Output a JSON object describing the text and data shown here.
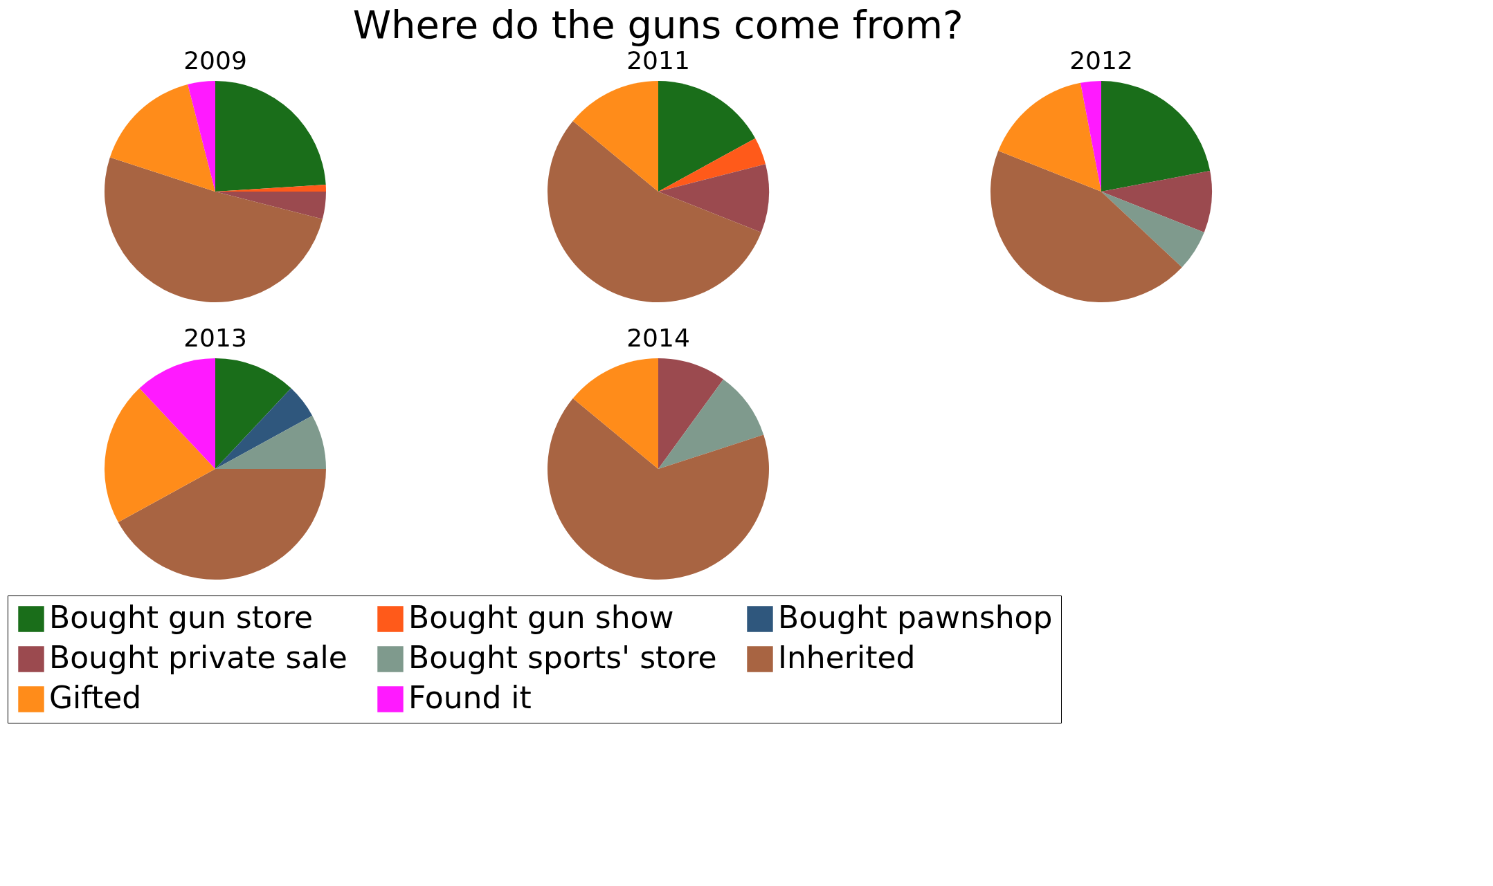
{
  "chart_data": {
    "type": "pie",
    "title": "Where do the guns come from?",
    "categories": [
      "Bought gun store",
      "Bought gun show",
      "Bought pawnshop",
      "Bought private sale",
      "Bought sports' store",
      "Inherited",
      "Gifted",
      "Found it"
    ],
    "colors": [
      "#1a6e1a",
      "#ff5a1a",
      "#2f577d",
      "#9b4a4f",
      "#7f9a8d",
      "#a86442",
      "#ff8c1a",
      "#ff1aff"
    ],
    "legend": "bottom",
    "series": [
      {
        "name": "2009",
        "values": [
          24,
          1,
          0,
          4,
          0,
          51,
          16,
          4
        ]
      },
      {
        "name": "2011",
        "values": [
          17,
          4,
          0,
          10,
          0,
          55,
          14,
          0
        ]
      },
      {
        "name": "2012",
        "values": [
          22,
          0,
          0,
          9,
          6,
          44,
          16,
          3
        ]
      },
      {
        "name": "2013",
        "values": [
          12,
          0,
          5,
          0,
          8,
          42,
          21,
          12
        ]
      },
      {
        "name": "2014",
        "values": [
          0,
          0,
          0,
          10,
          10,
          66,
          14,
          0
        ]
      }
    ]
  }
}
